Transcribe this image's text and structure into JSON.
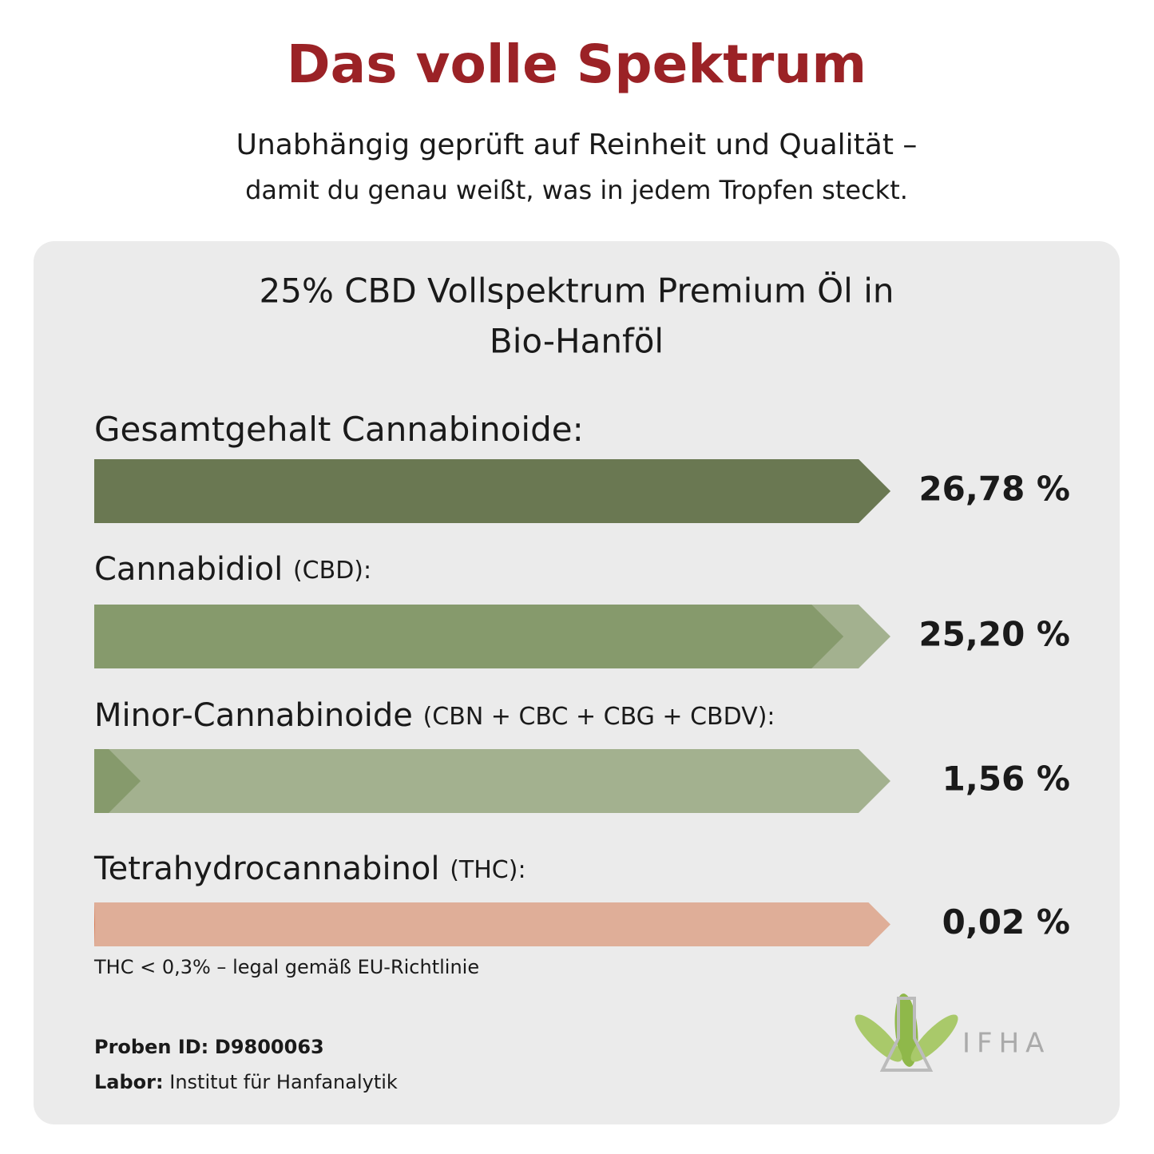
{
  "header": {
    "title": "Das volle Spektrum",
    "subtitle_lines": [
      "Unabhängig geprüft auf Reinheit und Qualität –",
      "damit du genau weißt, was in jedem Tropfen steckt."
    ]
  },
  "card": {
    "title_lines": [
      "25% CBD Vollspektrum Premium Öl in",
      "Bio-Hanföl"
    ],
    "items": [
      {
        "label": "Gesamtgehalt Cannabinoide:",
        "value": 26.78,
        "value_label": "26,78 %",
        "color": "#6a7852",
        "fill_color": "#6a7852"
      },
      {
        "label": "Cannabidiol",
        "sub": "(CBD):",
        "value": 25.2,
        "value_label": "25,20 %",
        "color": "#a3b18f",
        "fill_color": "#869a6c"
      },
      {
        "label": "Minor-Cannabinoide",
        "sub": "(CBN + CBC + CBG + CBDV):",
        "value": 1.56,
        "value_label": "1,56 %",
        "color": "#a3b18f",
        "fill_color": "#869a6c"
      },
      {
        "label": "Tetrahydrocannabinol",
        "sub": "(THC):",
        "value": 0.02,
        "value_label": "0,02 %",
        "color": "#dfae98",
        "fill_color": "#d4693e"
      }
    ],
    "note": "THC < 0,3% – legal gemäß EU-Richtlinie",
    "sample": {
      "label": "Proben ID:",
      "value": "D9800063"
    },
    "lab": {
      "label": "Labor:",
      "value": "Institut für Hanfanalytik"
    },
    "logo": "IFHA"
  }
}
